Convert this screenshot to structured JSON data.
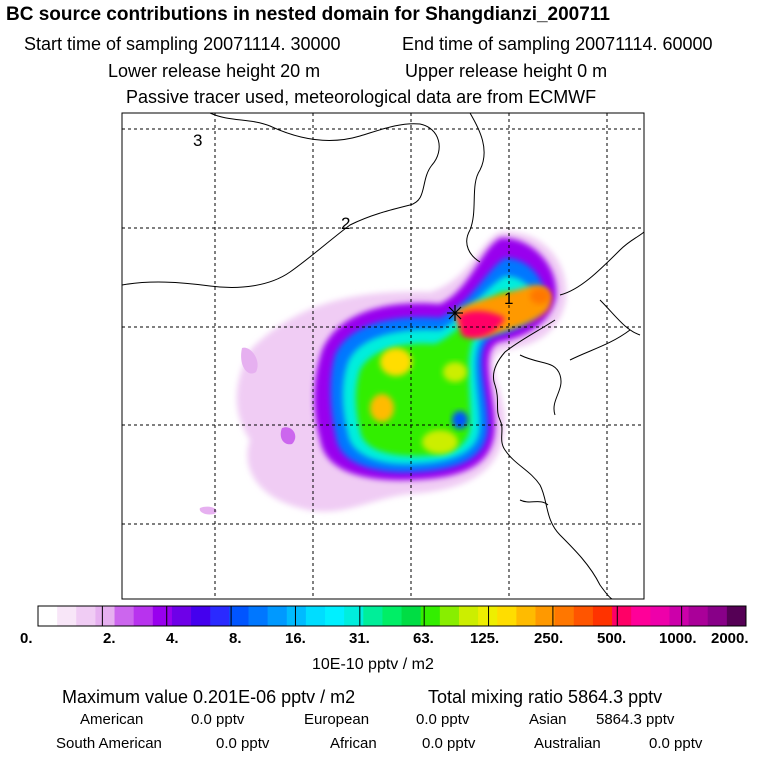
{
  "header": {
    "title": "BC  source contributions in nested domain for Shangdianzi_200711",
    "start_label": "Start time of sampling 20071114. 30000",
    "end_label": "End time of sampling 20071114. 60000",
    "lower_label": "Lower release height   20 m",
    "upper_label": "Upper release height    0 m",
    "note": "Passive tracer used, meteorological data are from ECMWF"
  },
  "map": {
    "markers": [
      "1",
      "2",
      "3"
    ],
    "receptor": "Shangdianzi"
  },
  "colorbar": {
    "tick_labels": [
      "0.",
      "2.",
      "4.",
      "8.",
      "16.",
      "31.",
      "63.",
      "125.",
      "250.",
      "500.",
      "1000.",
      "2000."
    ],
    "unit": "10E-10 pptv / m2",
    "colors": [
      "#ffffff",
      "#f8e6f8",
      "#f0ccf4",
      "#e6b0f0",
      "#cc66ee",
      "#b833ee",
      "#9900ee",
      "#6e00e8",
      "#4400ee",
      "#2a2aff",
      "#0055ff",
      "#0077ff",
      "#0099ff",
      "#00bbff",
      "#00ddff",
      "#00f0ff",
      "#00eedd",
      "#00ee99",
      "#00ee66",
      "#00dd44",
      "#33ee00",
      "#88ee00",
      "#ccee00",
      "#eeee00",
      "#ffdd00",
      "#ffbb00",
      "#ff9900",
      "#ff7700",
      "#ff5500",
      "#ff3300",
      "#ff0066",
      "#ff0099",
      "#ee00aa",
      "#cc00aa",
      "#aa0099",
      "#880088",
      "#550055"
    ]
  },
  "stats": {
    "max_label": "Maximum value  0.201E-06 pptv / m2",
    "total_label": "Total mixing ratio     5864.3 pptv",
    "sources": [
      {
        "name": "American",
        "value": "0.0 pptv"
      },
      {
        "name": "European",
        "value": "0.0 pptv"
      },
      {
        "name": "Asian",
        "value": "5864.3 pptv"
      },
      {
        "name": "South American",
        "value": "0.0 pptv"
      },
      {
        "name": "African",
        "value": "0.0 pptv"
      },
      {
        "name": "Australian",
        "value": "0.0 pptv"
      }
    ]
  }
}
